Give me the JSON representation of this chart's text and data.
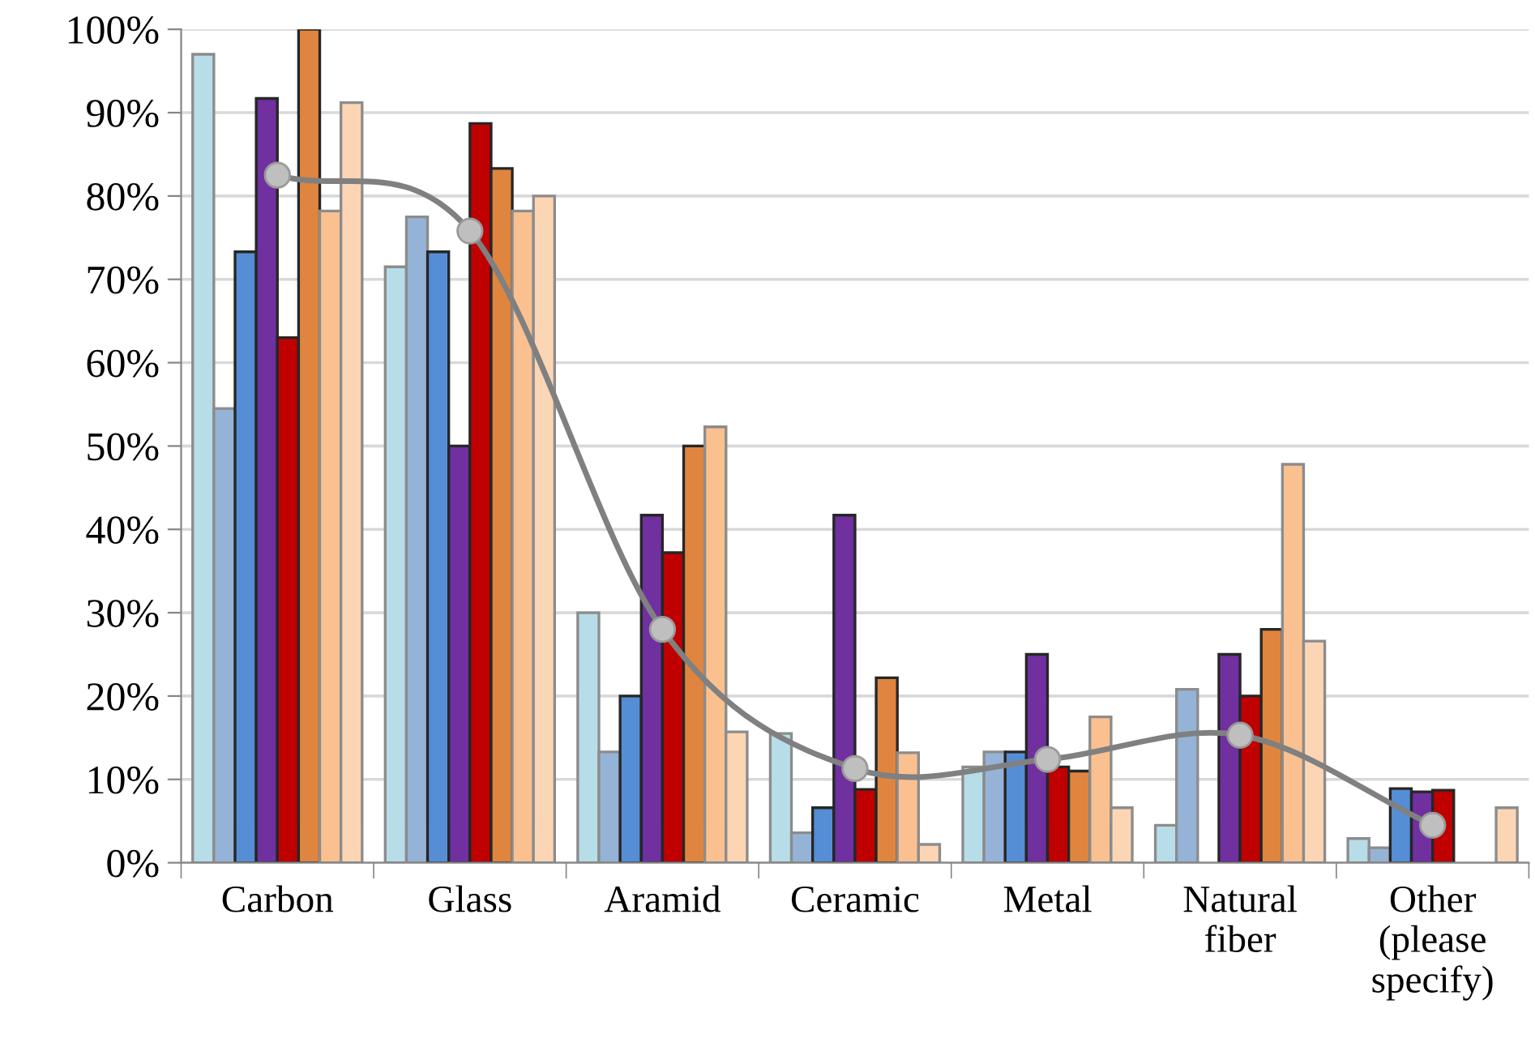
{
  "chart_data": {
    "type": "bar",
    "categories": [
      "Carbon",
      "Glass",
      "Aramid",
      "Ceramic",
      "Metal",
      "Natural\nfiber",
      "Other\n(please\nspecify)"
    ],
    "series": [
      {
        "color": "#b7dde8",
        "values": [
          97,
          71.5,
          30,
          15.5,
          11.5,
          4.5,
          2.9
        ]
      },
      {
        "color": "#95b3d7",
        "values": [
          54.5,
          77.5,
          13.3,
          3.6,
          13.3,
          20.8,
          1.8
        ]
      },
      {
        "color": "#558ed5",
        "values": [
          73.3,
          73.3,
          20,
          6.6,
          13.3,
          null,
          8.9
        ]
      },
      {
        "color": "#7030a0",
        "values": [
          91.7,
          50,
          41.7,
          41.7,
          25,
          25,
          8.5
        ]
      },
      {
        "color": "#c00000",
        "values": [
          63,
          88.7,
          37.2,
          8.8,
          11.5,
          20,
          8.7
        ]
      },
      {
        "color": "#e0853f",
        "values": [
          100,
          83.3,
          50,
          22.2,
          11,
          28,
          null
        ]
      },
      {
        "color": "#fac090",
        "values": [
          78.2,
          78.2,
          52.3,
          13.2,
          17.5,
          47.8,
          null
        ]
      },
      {
        "color": "#fcd5b5",
        "values": [
          91.2,
          80,
          15.7,
          2.2,
          6.6,
          26.6,
          6.6
        ]
      },
      {
        "type": "line",
        "color": "#808080",
        "values": [
          82.5,
          75.8,
          28,
          11.3,
          12.4,
          15.3,
          4.5
        ]
      }
    ],
    "ylim": [
      0,
      100
    ],
    "yticks": [
      {
        "value": 0,
        "label": "0%"
      },
      {
        "value": 10,
        "label": "10%"
      },
      {
        "value": 20,
        "label": "20%"
      },
      {
        "value": 30,
        "label": "30%"
      },
      {
        "value": 40,
        "label": "40%"
      },
      {
        "value": 50,
        "label": "50%"
      },
      {
        "value": 60,
        "label": "60%"
      },
      {
        "value": 70,
        "label": "70%"
      },
      {
        "value": 80,
        "label": "80%"
      },
      {
        "value": 90,
        "label": "90%"
      },
      {
        "value": 100,
        "label": "100%"
      }
    ],
    "grid": "y",
    "marker": "circle"
  }
}
